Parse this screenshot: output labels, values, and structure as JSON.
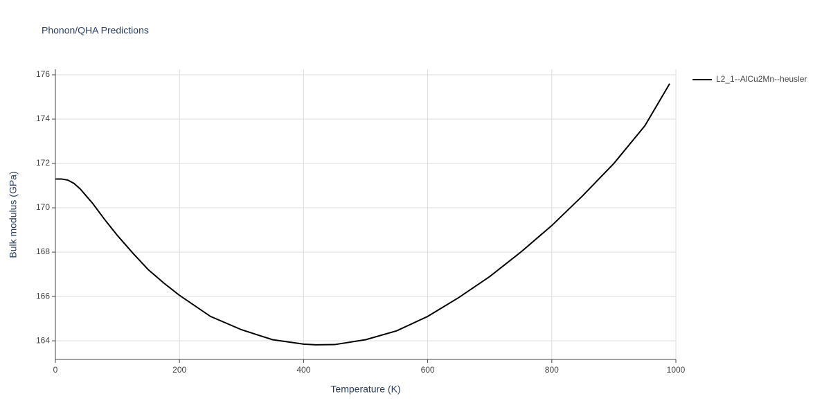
{
  "chart_data": {
    "type": "line",
    "title": "Phonon/QHA Predictions",
    "x_label": "Temperature (K)",
    "y_label": "Bulk modulus (GPa)",
    "x": [
      0,
      10,
      20,
      30,
      40,
      60,
      80,
      100,
      125,
      150,
      175,
      200,
      250,
      300,
      350,
      400,
      420,
      450,
      500,
      550,
      600,
      650,
      700,
      750,
      800,
      850,
      900,
      950,
      990
    ],
    "series": [
      {
        "name": "L2_1--AlCu2Mn--heusler",
        "color": "#000000",
        "values": [
          171.3,
          171.3,
          171.25,
          171.1,
          170.85,
          170.2,
          169.45,
          168.75,
          167.95,
          167.2,
          166.6,
          166.05,
          165.1,
          164.5,
          164.05,
          163.85,
          163.82,
          163.83,
          164.05,
          164.45,
          165.1,
          165.95,
          166.9,
          168.0,
          169.2,
          170.55,
          172.0,
          173.7,
          175.6
        ]
      }
    ],
    "xlim": [
      0,
      1000
    ],
    "xticks": [
      0,
      200,
      400,
      600,
      800,
      1000
    ],
    "ylim": [
      163.16,
      176.25
    ],
    "yticks": [
      164,
      166,
      168,
      170,
      172,
      174,
      176
    ],
    "grid": true,
    "legend": "right"
  }
}
